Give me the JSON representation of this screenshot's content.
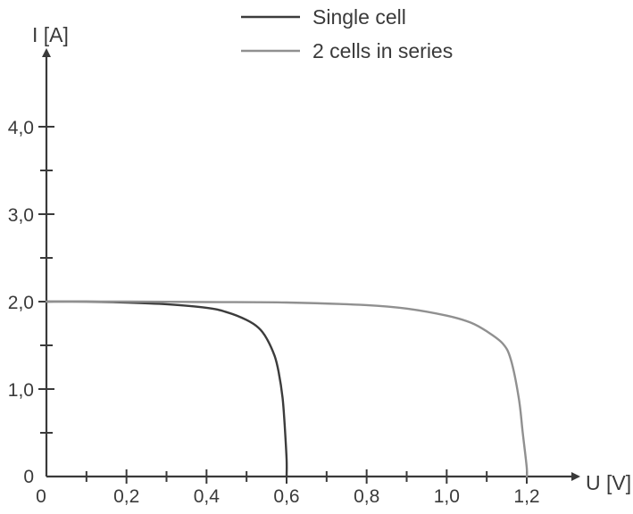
{
  "chart_data": {
    "type": "line",
    "xlabel": "U [V]",
    "ylabel": "I [A]",
    "xlim": [
      0,
      1.3
    ],
    "ylim": [
      0,
      4.2
    ],
    "x_ticks": [
      0,
      0.2,
      0.4,
      0.6,
      0.8,
      1.0,
      1.2
    ],
    "x_tick_labels": [
      "0",
      "0,2",
      "0,4",
      "0,6",
      "0,8",
      "1,0",
      "1,2"
    ],
    "x_minor_ticks": [
      0.1,
      0.3,
      0.5,
      0.7,
      0.9,
      1.1
    ],
    "y_ticks": [
      0,
      1.0,
      2.0,
      3.0,
      4.0
    ],
    "y_tick_labels": [
      "0",
      "1,0",
      "2,0",
      "3,0",
      "4,0"
    ],
    "y_minor_ticks": [
      0.5,
      1.5,
      2.5,
      3.5
    ],
    "grid": false,
    "legend_position": "top-center",
    "series": [
      {
        "name": "Single cell",
        "color": "#3c3c3c",
        "x": [
          0,
          0.1,
          0.2,
          0.3,
          0.4,
          0.45,
          0.5,
          0.53,
          0.55,
          0.57,
          0.58,
          0.59,
          0.595,
          0.6,
          0.6
        ],
        "y": [
          2.0,
          2.0,
          1.99,
          1.97,
          1.93,
          1.88,
          1.79,
          1.7,
          1.58,
          1.38,
          1.2,
          0.9,
          0.6,
          0.2,
          0
        ]
      },
      {
        "name": "2 cells in series",
        "color": "#909090",
        "x": [
          0,
          0.2,
          0.4,
          0.6,
          0.8,
          0.9,
          1.0,
          1.06,
          1.1,
          1.14,
          1.16,
          1.18,
          1.19,
          1.2,
          1.2
        ],
        "y": [
          2.0,
          2.0,
          1.995,
          1.99,
          1.96,
          1.92,
          1.84,
          1.76,
          1.66,
          1.52,
          1.34,
          0.9,
          0.5,
          0.1,
          0
        ]
      }
    ]
  }
}
